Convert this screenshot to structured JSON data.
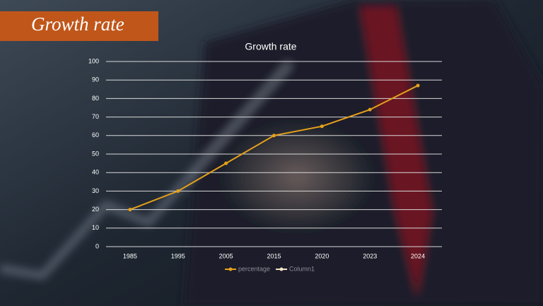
{
  "header": {
    "title": "Growth rate"
  },
  "chart_data": {
    "type": "line",
    "title": "Growth rate",
    "categories": [
      "1985",
      "1995",
      "2005",
      "2015",
      "2020",
      "2023",
      "2024"
    ],
    "series": [
      {
        "name": "percentage",
        "color": "#e6a11a",
        "values": [
          20,
          30,
          45,
          60,
          65,
          74,
          87
        ]
      },
      {
        "name": "Column1",
        "color": "#f3e3c4",
        "values": [
          null,
          null,
          null,
          null,
          null,
          null,
          null
        ]
      }
    ],
    "ylim": [
      0,
      100
    ],
    "yticks": [
      0,
      10,
      20,
      30,
      40,
      50,
      60,
      70,
      80,
      90,
      100
    ],
    "grid": true,
    "legend": "bottom"
  }
}
